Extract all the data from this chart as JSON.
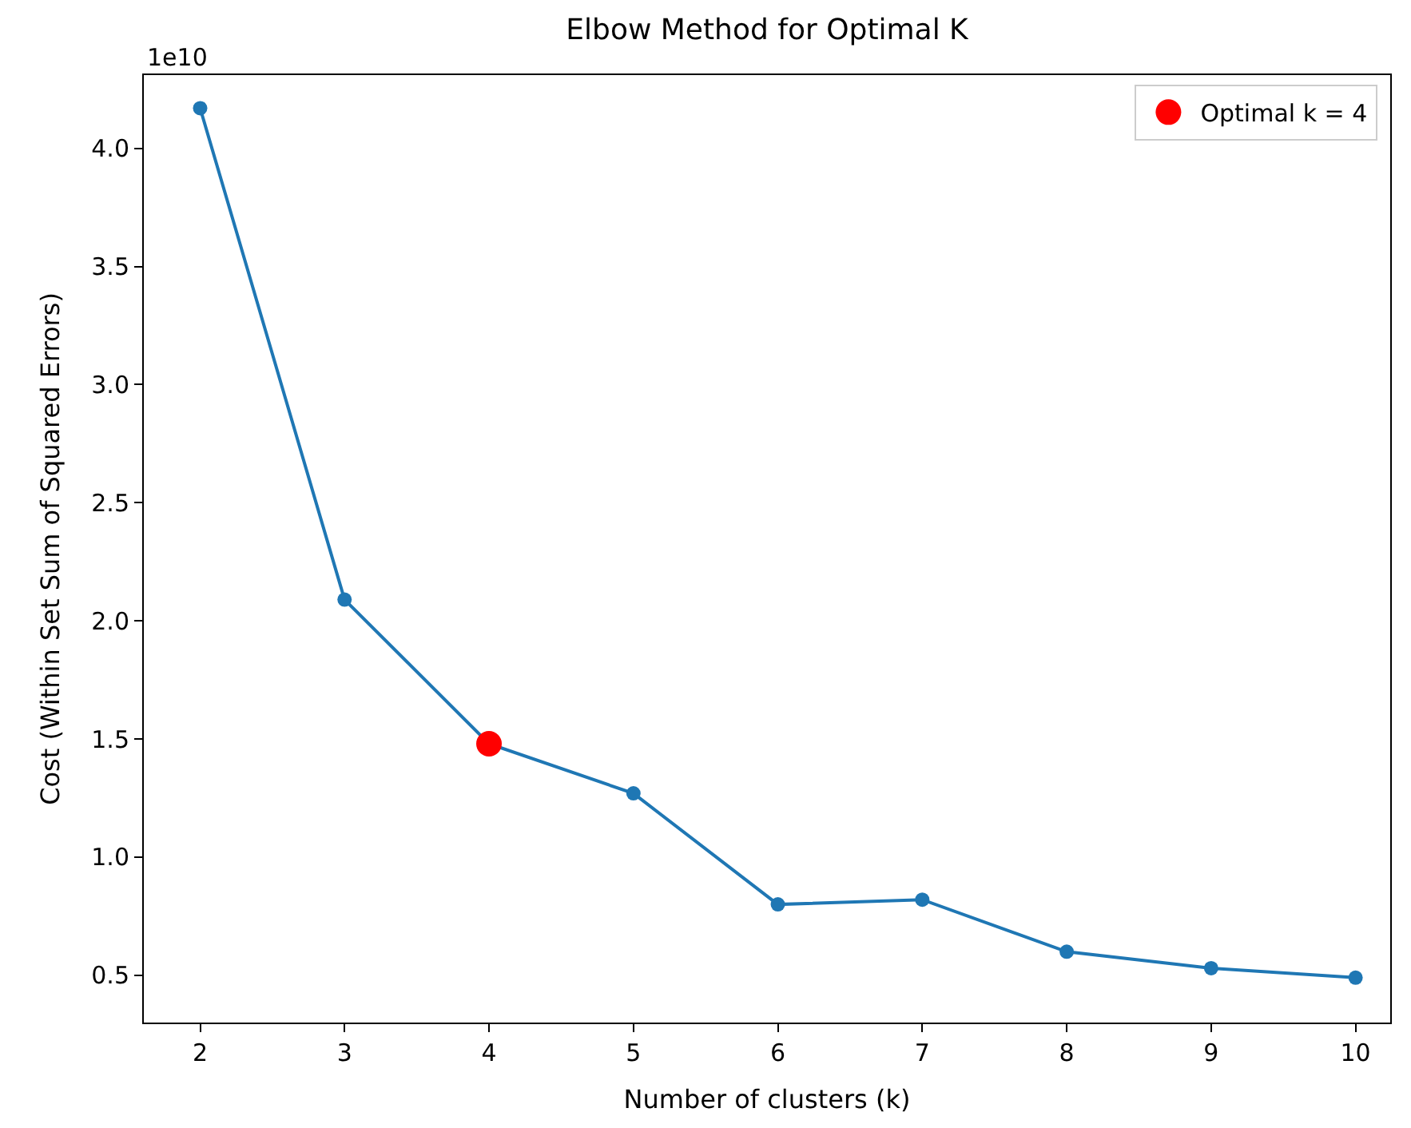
{
  "chart_data": {
    "type": "line",
    "title": "Elbow Method for Optimal K",
    "xlabel": "Number of clusters (k)",
    "ylabel": "Cost (Within Set Sum of Squared Errors)",
    "x": [
      2,
      3,
      4,
      5,
      6,
      7,
      8,
      9,
      10
    ],
    "series": [
      {
        "color": "#1f77b4",
        "values": [
          4.17,
          2.09,
          1.48,
          1.27,
          0.8,
          0.82,
          0.6,
          0.53,
          0.49
        ],
        "marker": "circle"
      },
      {
        "type": "scatter",
        "name": "Optimal k = 4",
        "color": "#ff0000",
        "x": [
          4
        ],
        "values": [
          1.48
        ],
        "marker": "circle"
      }
    ],
    "xlim": [
      1.61,
      10.24
    ],
    "ylim": [
      0.3,
      4.31
    ],
    "xticks": [
      2,
      3,
      4,
      5,
      6,
      7,
      8,
      9,
      10
    ],
    "yticks": [
      {
        "value": 0.5,
        "label": "0.5"
      },
      {
        "value": 1.0,
        "label": "1.0"
      },
      {
        "value": 1.5,
        "label": "1.5"
      },
      {
        "value": 2.0,
        "label": "2.0"
      },
      {
        "value": 2.5,
        "label": "2.5"
      },
      {
        "value": 3.0,
        "label": "3.0"
      },
      {
        "value": 3.5,
        "label": "3.5"
      },
      {
        "value": 4.0,
        "label": "4.0"
      }
    ],
    "annotations": [
      "1e10"
    ],
    "legend": "top right"
  }
}
